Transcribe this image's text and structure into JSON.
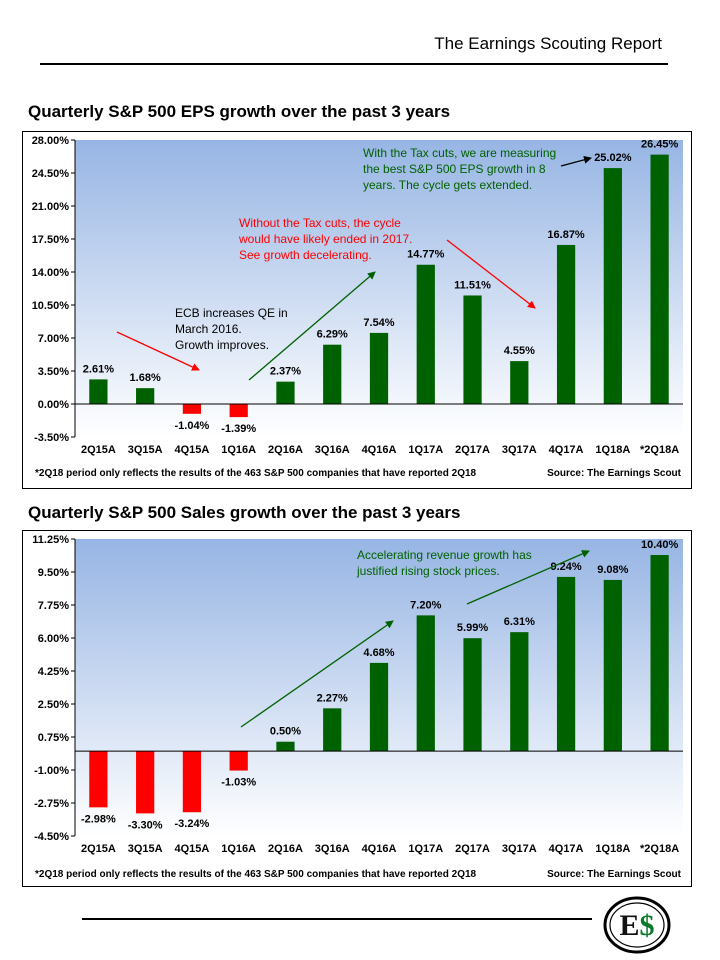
{
  "header": {
    "title": "The Earnings Scouting Report"
  },
  "logo": {
    "text": "E$"
  },
  "chart_data": [
    {
      "type": "bar",
      "title": "Quarterly S&P 500 EPS growth over the past 3 years",
      "categories": [
        "2Q15A",
        "3Q15A",
        "4Q15A",
        "1Q16A",
        "2Q16A",
        "3Q16A",
        "4Q16A",
        "1Q17A",
        "2Q17A",
        "3Q17A",
        "4Q17A",
        "1Q18A",
        "*2Q18A"
      ],
      "values": [
        2.61,
        1.68,
        -1.04,
        -1.39,
        2.37,
        6.29,
        7.54,
        14.77,
        11.51,
        4.55,
        16.87,
        25.02,
        26.45
      ],
      "value_labels": [
        "2.61%",
        "1.68%",
        "-1.04%",
        "-1.39%",
        "2.37%",
        "6.29%",
        "7.54%",
        "14.77%",
        "11.51%",
        "4.55%",
        "16.87%",
        "25.02%",
        "26.45%"
      ],
      "yticks": [
        "28.00%",
        "24.50%",
        "21.00%",
        "17.50%",
        "14.00%",
        "10.50%",
        "7.00%",
        "3.50%",
        "0.00%",
        "-3.50%"
      ],
      "ylim": [
        -3.5,
        28
      ],
      "positive_color": "#006100",
      "negative_color": "#ff0000",
      "footnote": "*2Q18 period  only reflects the results of the 463 S&P 500 companies  that have reported  2Q18",
      "source": "Source: The Earnings Scout",
      "annotations": [
        {
          "lines": [
            "With the Tax cuts, we are measuring",
            "the best S&P 500 EPS growth  in 8",
            "years. The cycle gets extended."
          ],
          "color": "#006100"
        },
        {
          "lines": [
            "Without the Tax cuts, the cycle",
            "would have likely ended in 2017.",
            "See growth decelerating."
          ],
          "color": "#ff0000"
        },
        {
          "lines": [
            "ECB increases QE in",
            "March 2016.",
            "Growth improves."
          ],
          "color": "#000000"
        }
      ],
      "grid": false
    },
    {
      "type": "bar",
      "title": "Quarterly S&P 500 Sales growth over the past 3 years",
      "categories": [
        "2Q15A",
        "3Q15A",
        "4Q15A",
        "1Q16A",
        "2Q16A",
        "3Q16A",
        "4Q16A",
        "1Q17A",
        "2Q17A",
        "3Q17A",
        "4Q17A",
        "1Q18A",
        "*2Q18A"
      ],
      "values": [
        -2.98,
        -3.3,
        -3.24,
        -1.03,
        0.5,
        2.27,
        4.68,
        7.2,
        5.99,
        6.31,
        9.24,
        9.08,
        10.4
      ],
      "value_labels": [
        "-2.98%",
        "-3.30%",
        "-3.24%",
        "-1.03%",
        "0.50%",
        "2.27%",
        "4.68%",
        "7.20%",
        "5.99%",
        "6.31%",
        "9.24%",
        "9.08%",
        "10.40%"
      ],
      "yticks": [
        "11.25%",
        "9.50%",
        "7.75%",
        "6.00%",
        "4.25%",
        "2.50%",
        "0.75%",
        "-1.00%",
        "-2.75%",
        "-4.50%"
      ],
      "ylim": [
        -4.5,
        11.25
      ],
      "positive_color": "#006100",
      "negative_color": "#ff0000",
      "footnote": "*2Q18 period  only reflects the results of the 463 S&P 500 companies  that have reported  2Q18",
      "source": "Source: The Earnings Scout",
      "annotations": [
        {
          "lines": [
            "Accelerating revenue  growth has",
            "justified rising stock prices."
          ],
          "color": "#006100"
        }
      ],
      "grid": false
    }
  ]
}
